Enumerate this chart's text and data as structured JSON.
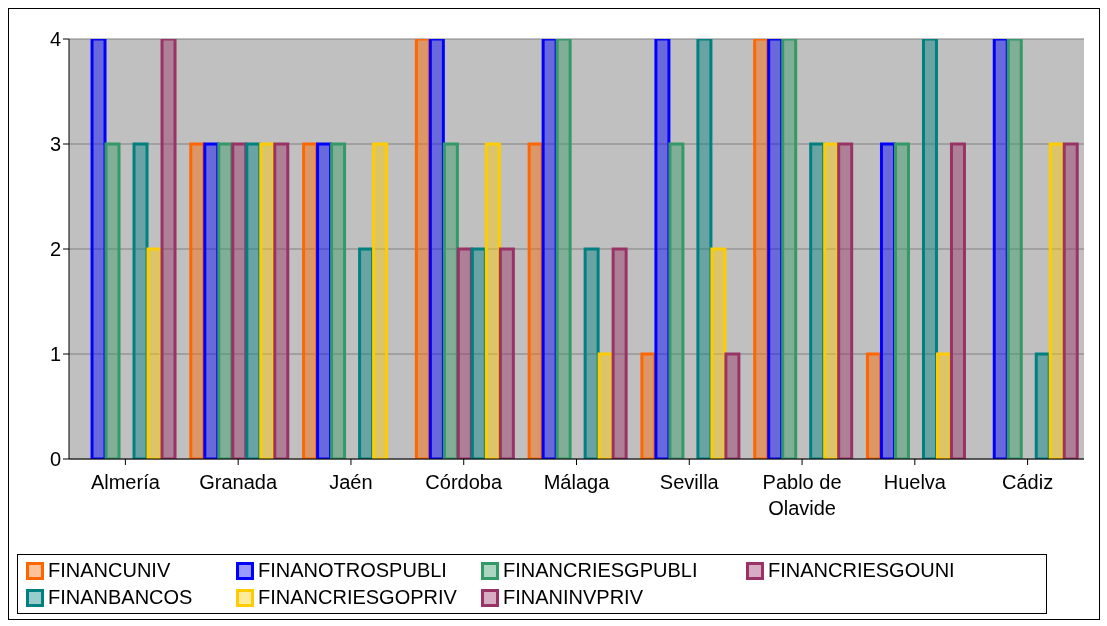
{
  "chart_data": {
    "type": "bar",
    "categories": [
      "Almería",
      "Granada",
      "Jaén",
      "Córdoba",
      "Málaga",
      "Sevilla",
      "Pablo de Olavide",
      "Huelva",
      "Cádiz"
    ],
    "series": [
      {
        "name": "FINANCUNIV",
        "color": "#ff6600",
        "values": [
          0,
          3,
          3,
          4,
          3,
          1,
          4,
          1,
          0
        ]
      },
      {
        "name": "FINANOTROSPUBLI",
        "color": "#0000ff",
        "values": [
          4,
          3,
          3,
          4,
          4,
          4,
          4,
          3,
          4
        ]
      },
      {
        "name": "FINANCRIESGPUBLI",
        "color": "#339966",
        "values": [
          3,
          3,
          3,
          3,
          4,
          3,
          4,
          3,
          4
        ]
      },
      {
        "name": "FINANCRIESGOUNI",
        "color": "#993366",
        "values": [
          0,
          3,
          0,
          2,
          0,
          0,
          0,
          0,
          0
        ]
      },
      {
        "name": "FINANBANCOS",
        "color": "#008080",
        "values": [
          3,
          3,
          2,
          2,
          2,
          4,
          3,
          4,
          1
        ]
      },
      {
        "name": "FINANCRIESGOPRIV",
        "color": "#ffcc00",
        "values": [
          2,
          3,
          3,
          3,
          1,
          2,
          3,
          1,
          3
        ]
      },
      {
        "name": "FINANINVPRIV",
        "color": "#993366",
        "values": [
          4,
          3,
          0,
          2,
          2,
          1,
          3,
          3,
          3
        ]
      }
    ],
    "ylim": [
      0,
      4
    ],
    "yticks": [
      0,
      1,
      2,
      3,
      4
    ],
    "grid": "y",
    "legend": "bottom"
  }
}
